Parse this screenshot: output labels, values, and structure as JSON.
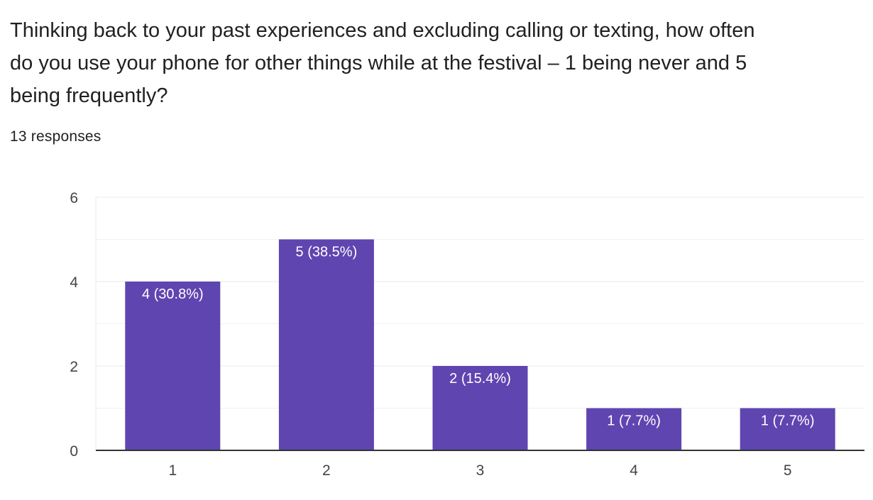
{
  "question": {
    "title": "Thinking back to your past experiences and excluding calling or texting, how often do you use your phone for other things while at the festival – 1 being never and 5 being frequently?",
    "response_count": "13 responses"
  },
  "colors": {
    "bar": "#5f45b0",
    "bar_label": "#ffffff",
    "gridline": "#e8e8e8",
    "axis": "#333333",
    "tick_label": "#444444"
  },
  "chart_data": {
    "type": "bar",
    "categories": [
      "1",
      "2",
      "3",
      "4",
      "5"
    ],
    "values": [
      4,
      5,
      2,
      1,
      1
    ],
    "data_labels": [
      "4 (30.8%)",
      "5 (38.5%)",
      "2 (15.4%)",
      "1 (7.7%)",
      "1 (7.7%)"
    ],
    "title": "",
    "xlabel": "",
    "ylabel": "",
    "ylim": [
      0,
      6
    ],
    "y_ticks": [
      "0",
      "2",
      "4",
      "6"
    ],
    "minor_gridlines": [
      1,
      3,
      5
    ],
    "grid": true,
    "legend": "none"
  }
}
